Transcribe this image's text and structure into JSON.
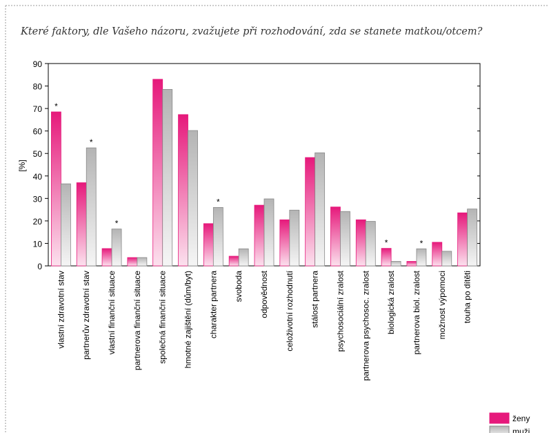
{
  "chart_data": {
    "type": "bar",
    "title": "Které faktory, dle Vašeho názoru, zvažujete při rozhodování, zda se stanete matkou/otcem?",
    "y_label": "[%]",
    "categories": [
      "vlastní zdravotní stav",
      "partnerův zdravotní stav",
      "vlastní finanční situace",
      "partnerova finanční situace",
      "společná finanční situace",
      "hmotné zajištění (dům/byt)",
      "charakter partnera",
      "svoboda",
      "odpovědnost",
      "celoživotní rozhodnutí",
      "stálost partnera",
      "psychosociální zralost",
      "partnerova psychosoc. zralost",
      "biologická zralost",
      "partnerova biol. zralost",
      "možnost výpomoci",
      "touha po dítěti"
    ],
    "series": [
      {
        "name": "ženy",
        "color": "#e6197b",
        "values": [
          68.5,
          37,
          7.7,
          3.7,
          83,
          67.3,
          18.8,
          4.3,
          27,
          20.5,
          48.2,
          26.2,
          20.5,
          7.8,
          2,
          10.5,
          23.6
        ]
      },
      {
        "name": "muži",
        "color": "#b4b4b4",
        "values": [
          36.5,
          52.5,
          16.4,
          3.7,
          78.5,
          60.2,
          26,
          7.6,
          29.8,
          24.8,
          50.3,
          24.2,
          19.8,
          2,
          7.6,
          6.5,
          25.3
        ]
      }
    ],
    "annotations": [
      {
        "text": "*",
        "category": "vlastní zdravotní stav",
        "series": "ženy"
      },
      {
        "text": "*",
        "category": "partnerův zdravotní stav",
        "series": "muži"
      },
      {
        "text": "*",
        "category": "vlastní finanční situace",
        "series": "muži"
      },
      {
        "text": "*",
        "category": "charakter partnera",
        "series": "muži"
      },
      {
        "text": "*",
        "category": "biologická zralost",
        "series": "ženy"
      },
      {
        "text": "*",
        "category": "partnerova biol. zralost",
        "series": "muži"
      }
    ],
    "ylim": [
      0,
      90
    ],
    "yticks": [
      0,
      10,
      20,
      30,
      40,
      50,
      60,
      70,
      80,
      90
    ],
    "grid": false,
    "legend": "bottom-right"
  }
}
